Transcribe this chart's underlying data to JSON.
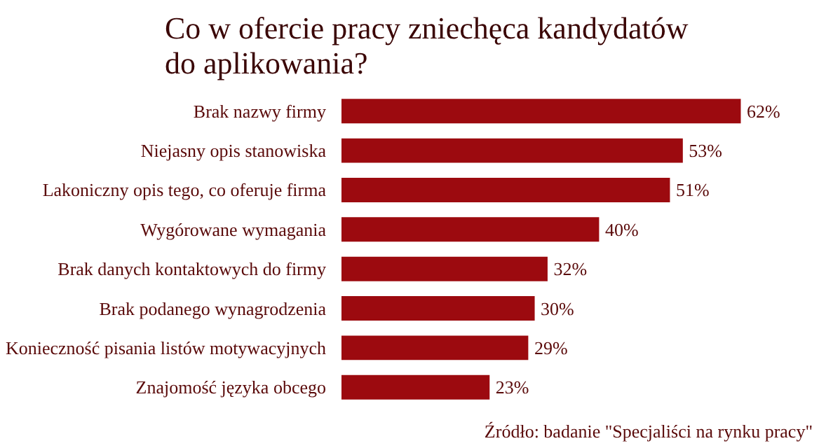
{
  "chart_data": {
    "type": "bar",
    "orientation": "horizontal",
    "title": "Co w ofercie pracy zniechęca kandydatów do aplikowania?",
    "categories": [
      "Brak nazwy firmy",
      "Niejasny opis stanowiska",
      "Lakoniczny opis tego, co oferuje firma",
      "Wygórowane wymagania",
      "Brak danych kontaktowych do firmy",
      "Brak podanego wynagrodzenia",
      "Konieczność pisania listów motywacyjnych",
      "Znajomość języka obcego"
    ],
    "values": [
      62,
      53,
      51,
      40,
      32,
      30,
      29,
      23
    ],
    "value_labels": [
      "62%",
      "53%",
      "51%",
      "40%",
      "32%",
      "30%",
      "29%",
      "23%"
    ],
    "color": "#9c0a0f",
    "tick_labels": "y",
    "grid": false,
    "annotations": [
      "Źródło: badanie \"Specjaliści na rynku pracy\""
    ]
  }
}
